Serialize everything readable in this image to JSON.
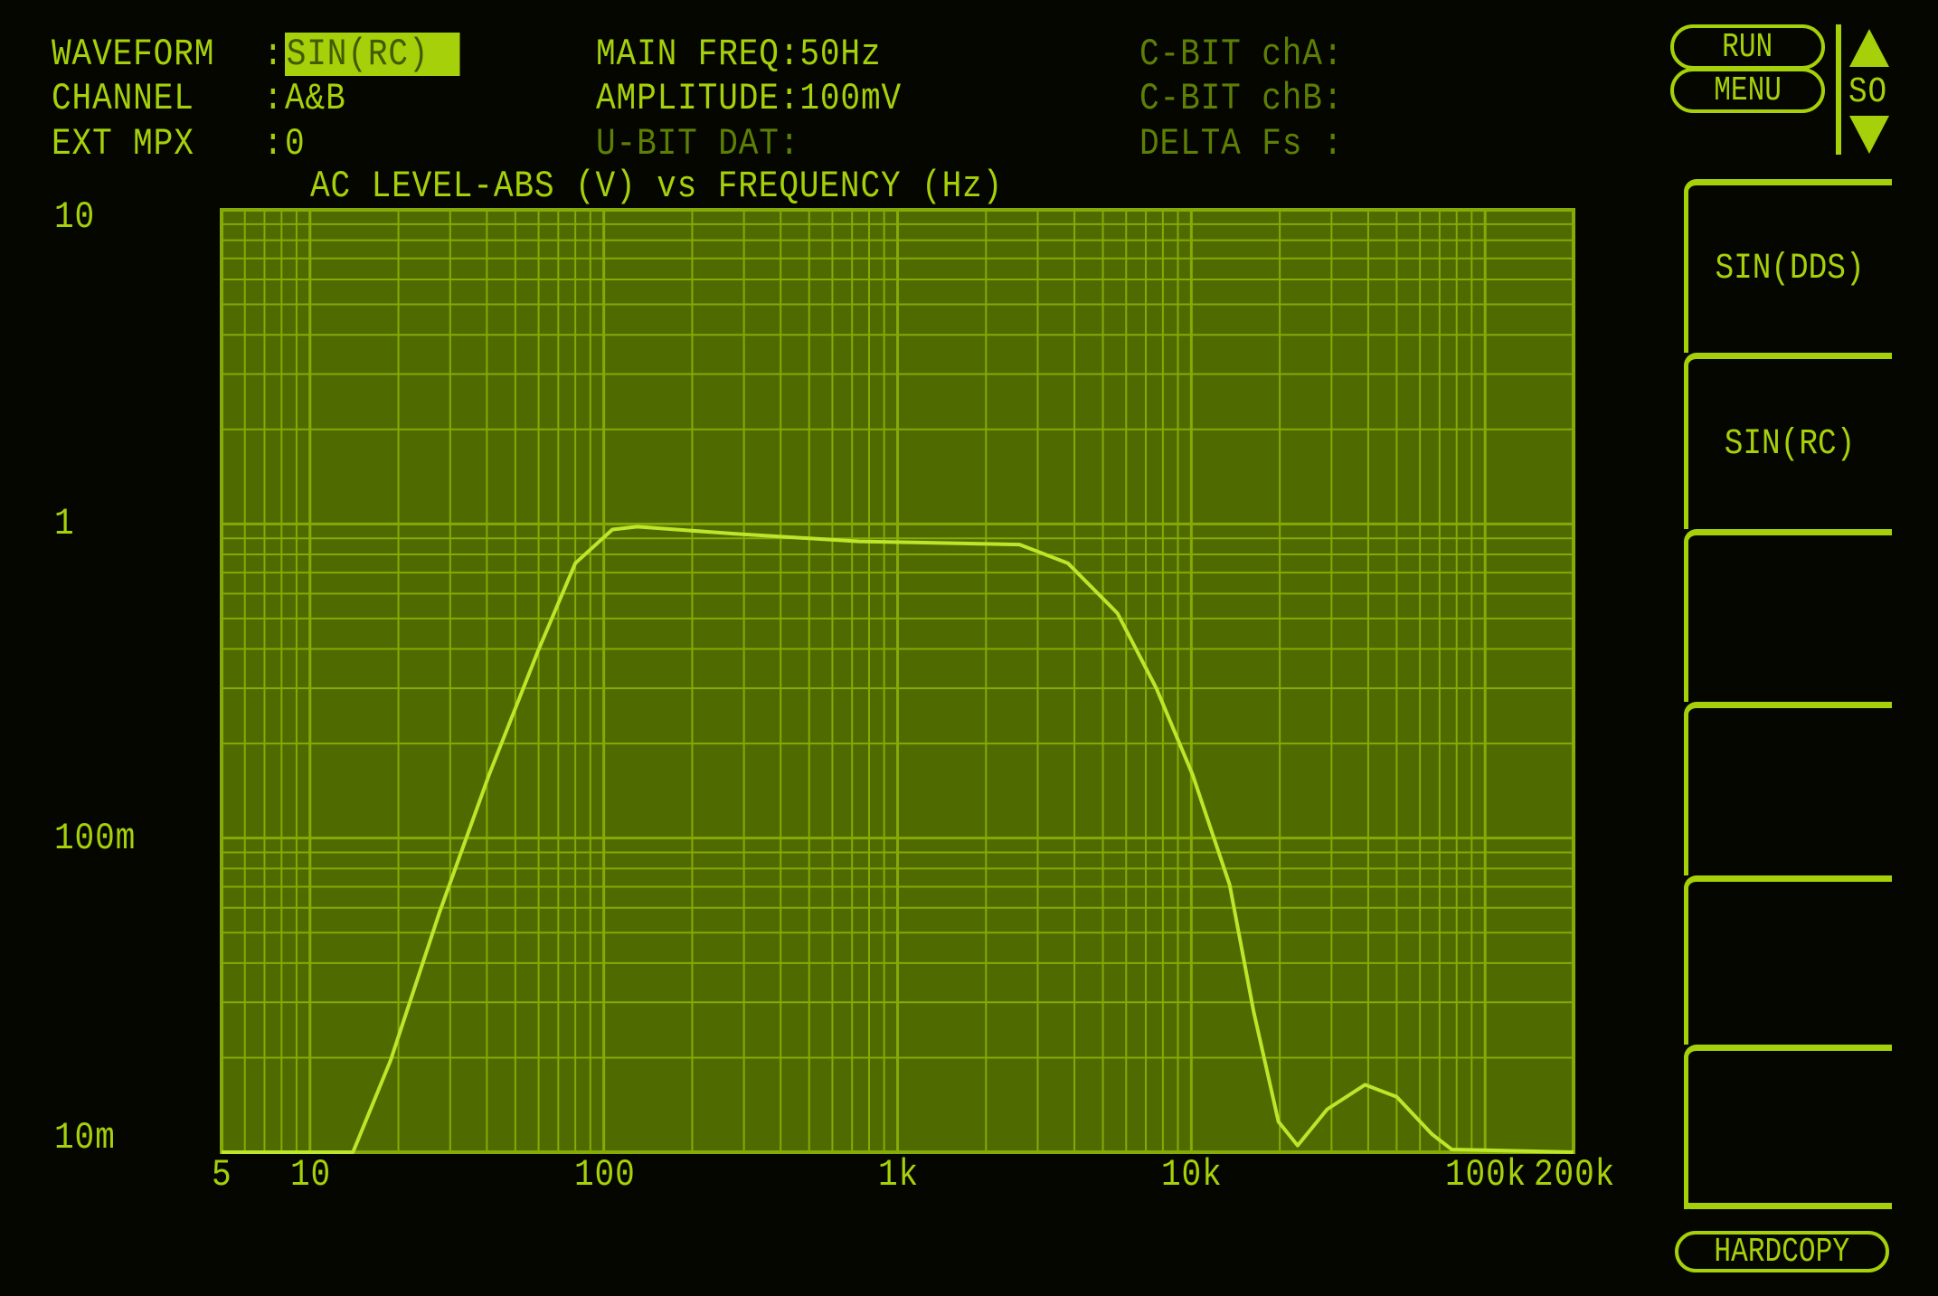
{
  "header": {
    "waveform_label": "WAVEFORM",
    "waveform_value": "SIN(RC)",
    "channel_label": "CHANNEL",
    "channel_value": "A&B",
    "ext_mpx_label": "EXT MPX",
    "ext_mpx_value": "0",
    "colon": ":",
    "main_freq": "MAIN FREQ:50Hz",
    "amplitude": "AMPLITUDE:100mV",
    "u_bit": "U-BIT DAT:",
    "c_bit_a": "C-BIT chA:",
    "c_bit_b": "C-BIT chB:",
    "delta_fs": "DELTA Fs :"
  },
  "controls": {
    "run": "RUN",
    "menu": "MENU",
    "so": "SO",
    "up_icon": "triangle-up",
    "down_icon": "triangle-down",
    "hardcopy": "HARDCOPY"
  },
  "softkeys": [
    "SIN(DDS)",
    "SIN(RC)",
    "",
    "",
    "",
    ""
  ],
  "colors": {
    "phosphor": "#a6d10a",
    "plot_bg": "#4f6b00",
    "grid": "#86aa06",
    "trace": "#bde52a",
    "dim_text": "#5e7f05"
  },
  "chart_data": {
    "type": "line",
    "title": "AC LEVEL-ABS (V) vs FREQUENCY (Hz)",
    "x_scale": "log",
    "y_scale": "log",
    "xlim": [
      5,
      200000
    ],
    "ylim": [
      0.01,
      10
    ],
    "grid": true,
    "x_ticks": [
      {
        "value": 5,
        "label": "5"
      },
      {
        "value": 10,
        "label": "10"
      },
      {
        "value": 100,
        "label": "100"
      },
      {
        "value": 1000,
        "label": "1k"
      },
      {
        "value": 10000,
        "label": "10k"
      },
      {
        "value": 100000,
        "label": "100k"
      },
      {
        "value": 200000,
        "label": "200k"
      }
    ],
    "y_ticks": [
      {
        "value": 10,
        "label": "10"
      },
      {
        "value": 1,
        "label": "1"
      },
      {
        "value": 0.1,
        "label": "100m"
      },
      {
        "value": 0.01,
        "label": "10m"
      }
    ],
    "x": [
      5,
      14,
      18.8,
      27.6,
      40.7,
      59.8,
      80,
      107,
      130,
      281,
      737,
      2600,
      3800,
      5600,
      7600,
      10100,
      13500,
      16300,
      19800,
      23000,
      29000,
      39000,
      50000,
      66000,
      77000,
      200000
    ],
    "y": [
      0.01,
      0.01,
      0.0196,
      0.058,
      0.159,
      0.395,
      0.75,
      0.96,
      0.98,
      0.93,
      0.88,
      0.86,
      0.75,
      0.52,
      0.3,
      0.159,
      0.071,
      0.028,
      0.0125,
      0.0105,
      0.0137,
      0.0164,
      0.015,
      0.0114,
      0.0102,
      0.01
    ]
  }
}
